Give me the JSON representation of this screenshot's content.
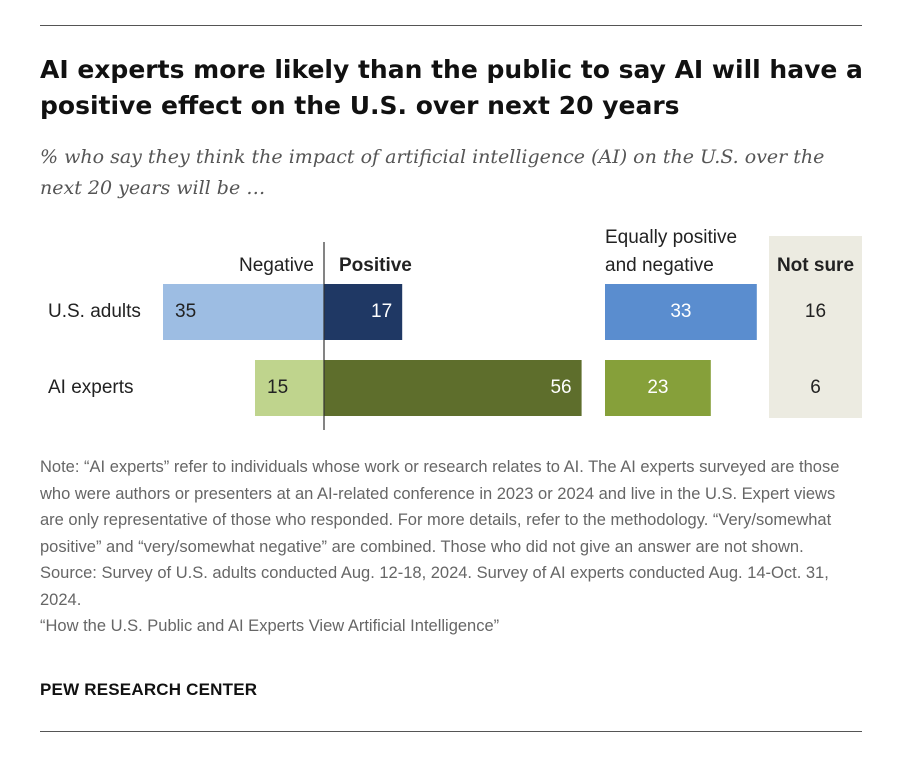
{
  "title": "AI experts more likely than the public to say AI will have a positive effect on the U.S. over next 20 years",
  "subtitle": "% who say they think the impact of artificial intelligence (AI) on the U.S. over the next 20 years will be …",
  "chart_data": {
    "type": "bar",
    "orientation": "horizontal-diverging",
    "categories": [
      "U.S. adults",
      "AI experts"
    ],
    "series": [
      {
        "name": "Negative",
        "values": [
          35,
          15
        ],
        "colors": [
          "#9dbde3",
          "#bfd48d"
        ]
      },
      {
        "name": "Positive",
        "values": [
          17,
          56
        ],
        "colors": [
          "#1f3864",
          "#5e6e2c"
        ]
      },
      {
        "name": "Equally positive and negative",
        "values": [
          33,
          23
        ],
        "colors": [
          "#5a8dcf",
          "#86a03a"
        ]
      },
      {
        "name": "Not sure",
        "values": [
          16,
          6
        ],
        "colors": [
          "#ecebe1",
          "#ecebe1"
        ]
      }
    ],
    "column_headers": {
      "negative": "Negative",
      "positive": "Positive",
      "equally_line1": "Equally positive",
      "equally_line2": "and negative",
      "not_sure": "Not sure"
    }
  },
  "notes": [
    "Note: “AI experts” refer to individuals whose work or research relates to AI. The AI experts surveyed are those who were authors or presenters at an AI-related conference in 2023 or 2024 and live in the U.S. Expert views are only representative of those who responded. For more details, refer to the methodology. “Very/somewhat positive” and “very/somewhat negative” are combined. Those who did not give an answer are not shown.",
    "Source: Survey of U.S. adults conducted Aug. 12-18, 2024. Survey of AI experts conducted Aug. 14-Oct. 31, 2024.",
    "“How the U.S. Public and AI Experts View Artificial Intelligence”"
  ],
  "brand": "PEW RESEARCH CENTER"
}
